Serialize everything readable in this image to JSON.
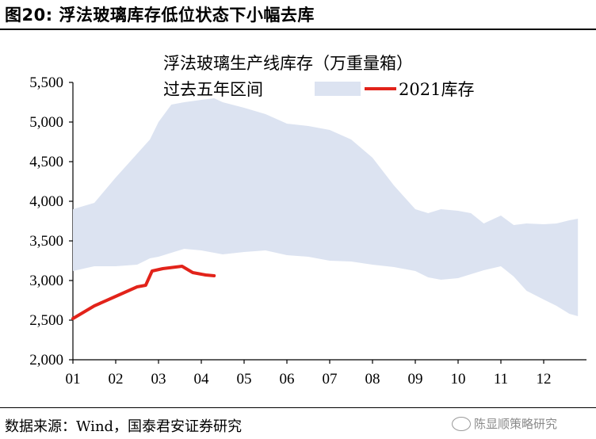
{
  "figure_title": "图20: 浮法玻璃库存低位状态下小幅去库",
  "source_text": "数据来源：Wind，国泰君安证券研究",
  "watermark_text": "陈显顺策略研究",
  "watermark_icon": "wechat-icon",
  "chart_data": {
    "type": "area",
    "title": "浮法玻璃生产线库存（万重量箱）",
    "xlabel": "",
    "ylabel": "",
    "ylim": [
      2000,
      5500
    ],
    "yticks": [
      2000,
      2500,
      3000,
      3500,
      4000,
      4500,
      5000,
      5500
    ],
    "ytick_labels": [
      "2,000",
      "2,500",
      "3,000",
      "3,500",
      "4,000",
      "4,500",
      "5,000",
      "5,500"
    ],
    "xlim": [
      1,
      13
    ],
    "xticks": [
      1,
      2,
      3,
      4,
      5,
      6,
      7,
      8,
      9,
      10,
      11,
      12
    ],
    "xtick_labels": [
      "01",
      "02",
      "03",
      "04",
      "05",
      "06",
      "07",
      "08",
      "09",
      "10",
      "11",
      "12"
    ],
    "band": {
      "name": "过去五年区间",
      "color": "#dce3f1",
      "x": [
        1.0,
        1.5,
        2.0,
        2.5,
        2.8,
        3.0,
        3.3,
        3.6,
        4.0,
        4.3,
        4.5,
        5.0,
        5.5,
        6.0,
        6.5,
        7.0,
        7.5,
        8.0,
        8.5,
        9.0,
        9.3,
        9.6,
        10.0,
        10.3,
        10.6,
        11.0,
        11.3,
        11.6,
        12.0,
        12.3,
        12.6,
        12.8
      ],
      "upper": [
        3900,
        3980,
        4300,
        4600,
        4780,
        5000,
        5220,
        5250,
        5280,
        5300,
        5250,
        5180,
        5100,
        4980,
        4950,
        4900,
        4780,
        4550,
        4200,
        3900,
        3850,
        3900,
        3880,
        3850,
        3720,
        3820,
        3700,
        3720,
        3710,
        3720,
        3760,
        3780
      ],
      "lower": [
        3120,
        3180,
        3180,
        3200,
        3280,
        3300,
        3350,
        3400,
        3380,
        3350,
        3330,
        3360,
        3380,
        3320,
        3300,
        3250,
        3240,
        3200,
        3170,
        3120,
        3040,
        3010,
        3030,
        3080,
        3130,
        3180,
        3050,
        2870,
        2760,
        2680,
        2580,
        2550
      ]
    },
    "series": [
      {
        "name": "2021库存",
        "color": "#e2231a",
        "x": [
          1.0,
          1.5,
          2.0,
          2.5,
          2.7,
          2.85,
          3.1,
          3.4,
          3.55,
          3.8,
          4.1,
          4.3
        ],
        "values": [
          2520,
          2680,
          2800,
          2920,
          2940,
          3120,
          3150,
          3170,
          3180,
          3100,
          3070,
          3060
        ]
      }
    ]
  }
}
